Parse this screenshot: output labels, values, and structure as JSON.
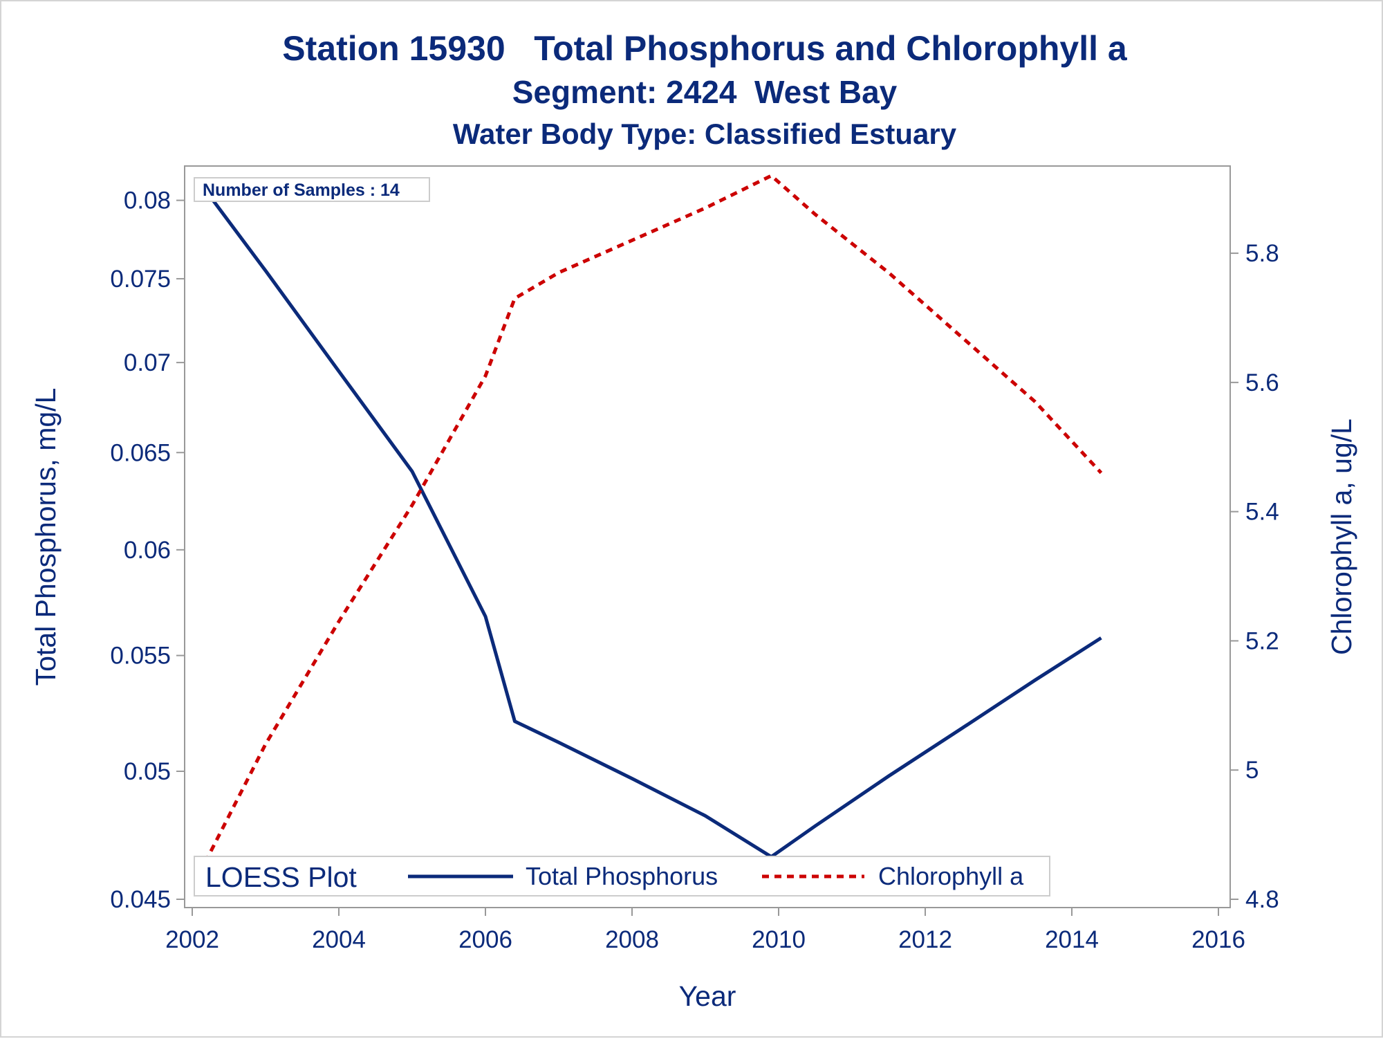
{
  "chart_data": {
    "type": "line",
    "title": "Station 15930   Total Phosphorus and Chlorophyll a",
    "subtitle": "Segment: 2424  West Bay",
    "subtitle2": "Water Body Type: Classified Estuary",
    "xlabel": "Year",
    "ylabel": "Total Phosphorus, mg/L",
    "y2label": "Chlorophyll a, ug/L",
    "xlim": [
      2002,
      2016
    ],
    "ylim": [
      0.045,
      0.0815
    ],
    "y_scale": "log",
    "y2lim": [
      4.8,
      5.92
    ],
    "x_ticks": [
      "2002",
      "2004",
      "2006",
      "2008",
      "2010",
      "2012",
      "2014",
      "2016"
    ],
    "y_ticks": [
      "0.045",
      "0.05",
      "0.055",
      "0.06",
      "0.065",
      "0.07",
      "0.075",
      "0.08"
    ],
    "y2_ticks": [
      "4.8",
      "5",
      "5.2",
      "5.4",
      "5.6",
      "5.8"
    ],
    "annotation": "Number of Samples : 14",
    "legend": {
      "title": "LOESS Plot",
      "position": "bottom-left inside",
      "items": [
        "Total Phosphorus",
        "Chlorophyll a"
      ]
    },
    "series": [
      {
        "name": "Total Phosphorus",
        "axis": "left",
        "color": "#0b2a7a",
        "style": "solid",
        "x": [
          2002.1,
          2003.0,
          2004.0,
          2005.0,
          2006.0,
          2006.4,
          2007.0,
          2008.0,
          2009.0,
          2009.9,
          2010.5,
          2011.5,
          2012.5,
          2013.5,
          2014.4
        ],
        "y": [
          0.0812,
          0.0755,
          0.0695,
          0.064,
          0.0568,
          0.0521,
          0.0512,
          0.0497,
          0.0482,
          0.0466,
          0.0478,
          0.0498,
          0.0518,
          0.0539,
          0.0558
        ]
      },
      {
        "name": "Chlorophyll a",
        "axis": "right",
        "color": "#cc0000",
        "style": "dashed",
        "x": [
          2002.1,
          2003.0,
          2004.0,
          2005.0,
          2006.0,
          2006.4,
          2007.0,
          2008.0,
          2009.0,
          2009.9,
          2010.5,
          2011.5,
          2012.5,
          2013.5,
          2014.4
        ],
        "y": [
          4.84,
          5.04,
          5.23,
          5.41,
          5.61,
          5.73,
          5.77,
          5.82,
          5.87,
          5.92,
          5.86,
          5.77,
          5.67,
          5.57,
          5.46
        ]
      }
    ]
  }
}
